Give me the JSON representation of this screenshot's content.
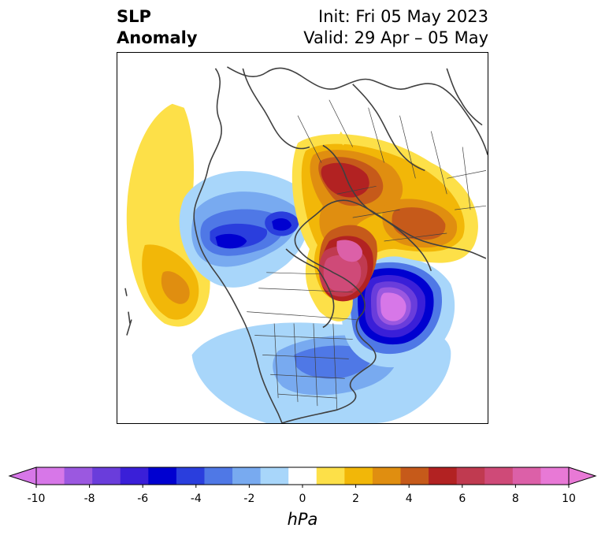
{
  "title": {
    "left_line1": "SLP",
    "left_line2": "Anomaly",
    "right_line1": "Init: Fri 05 May 2023",
    "right_line2": "Valid: 29 Apr – 05 May"
  },
  "colorbar": {
    "units": "hPa",
    "range": [
      -10,
      10
    ],
    "extend": "both",
    "ticks": [
      "-10",
      "-8",
      "-6",
      "-4",
      "-2",
      "0",
      "2",
      "4",
      "6",
      "8",
      "10"
    ],
    "colors": [
      "#d777e8",
      "#9b58e0",
      "#6a3ddb",
      "#3a1fd8",
      "#0000d0",
      "#2a3edd",
      "#4f78e6",
      "#78aaf0",
      "#a8d6fa",
      "#ffffff",
      "#fde048",
      "#f2b708",
      "#e08e10",
      "#c65a1a",
      "#b22222",
      "#c03a50",
      "#cf4a78",
      "#dc60a8",
      "#e879d6"
    ]
  },
  "map": {
    "projection": "north-polar-stereographic",
    "features": [
      "coastlines",
      "country-borders",
      "us-state-borders"
    ],
    "field": "sea level pressure anomaly"
  }
}
